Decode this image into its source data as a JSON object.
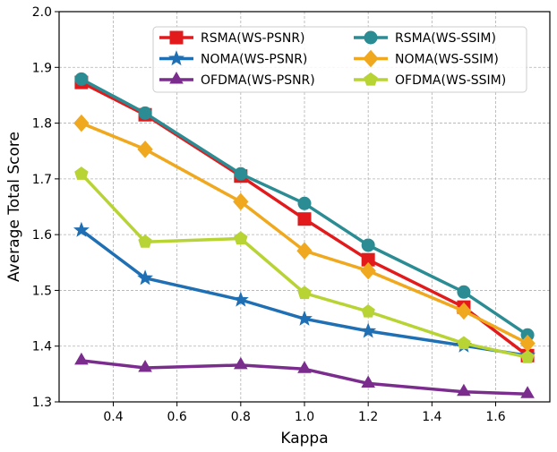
{
  "chart_data": {
    "type": "line",
    "title": "",
    "xlabel": "Kappa",
    "ylabel": "Average Total Score",
    "xlim": [
      0.23,
      1.77
    ],
    "ylim": [
      1.3,
      2.0
    ],
    "grid": true,
    "legend_position": "top-right",
    "xticks": [
      0.4,
      0.6,
      0.8,
      1.0,
      1.2,
      1.4,
      1.6
    ],
    "xtick_labels": [
      "0.4",
      "0.6",
      "0.8",
      "1.0",
      "1.2",
      "1.4",
      "1.6"
    ],
    "yticks": [
      1.3,
      1.4,
      1.5,
      1.6,
      1.7,
      1.8,
      1.9,
      2.0
    ],
    "ytick_labels": [
      "1.3",
      "1.4",
      "1.5",
      "1.6",
      "1.7",
      "1.8",
      "1.9",
      "2.0"
    ],
    "x": [
      0.3,
      0.5,
      0.8,
      1.0,
      1.2,
      1.5,
      1.7
    ],
    "series": [
      {
        "name": "RSMA(WS-PSNR)",
        "color": "#e31a1c",
        "marker": "square",
        "values": [
          1.873,
          1.815,
          1.705,
          1.628,
          1.555,
          1.47,
          1.383
        ]
      },
      {
        "name": "NOMA(WS-PSNR)",
        "color": "#1f6fb4",
        "marker": "star",
        "values": [
          1.608,
          1.522,
          1.483,
          1.449,
          1.427,
          1.401,
          1.383
        ]
      },
      {
        "name": "OFDMA(WS-PSNR)",
        "color": "#7b2d8e",
        "marker": "triangle",
        "values": [
          1.374,
          1.361,
          1.366,
          1.359,
          1.333,
          1.318,
          1.314
        ]
      },
      {
        "name": "RSMA(WS-SSIM)",
        "color": "#2b8c93",
        "marker": "circle",
        "values": [
          1.879,
          1.818,
          1.709,
          1.656,
          1.581,
          1.497,
          1.42
        ]
      },
      {
        "name": "NOMA(WS-SSIM)",
        "color": "#f0a81e",
        "marker": "diamond",
        "values": [
          1.8,
          1.753,
          1.659,
          1.571,
          1.535,
          1.463,
          1.405
        ]
      },
      {
        "name": "OFDMA(WS-SSIM)",
        "color": "#b7d334",
        "marker": "pentagon",
        "values": [
          1.709,
          1.587,
          1.593,
          1.495,
          1.462,
          1.405,
          1.38
        ]
      }
    ]
  }
}
